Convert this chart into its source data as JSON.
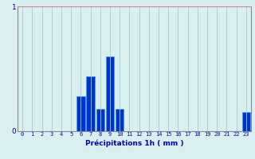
{
  "hours": [
    0,
    1,
    2,
    3,
    4,
    5,
    6,
    7,
    8,
    9,
    10,
    11,
    12,
    13,
    14,
    15,
    16,
    17,
    18,
    19,
    20,
    21,
    22,
    23
  ],
  "values": [
    0,
    0,
    0,
    0,
    0,
    0,
    0.28,
    0.44,
    0.18,
    0.6,
    0.18,
    0,
    0,
    0,
    0,
    0,
    0,
    0,
    0,
    0,
    0,
    0,
    0,
    0.15
  ],
  "bar_color": "#0033cc",
  "bar_edge_color": "#3399ff",
  "background_color": "#daf0f0",
  "grid_color": "#aacccc",
  "grid_color_top": "#cc8888",
  "xlabel": "Précipitations 1h ( mm )",
  "xlabel_color": "#0000bb",
  "ylim": [
    0,
    1.0
  ],
  "xlim": [
    0,
    24
  ],
  "yticks": [
    0,
    1
  ],
  "tick_color": "#0000bb",
  "spine_color": "#888888",
  "bar_width": 0.85
}
